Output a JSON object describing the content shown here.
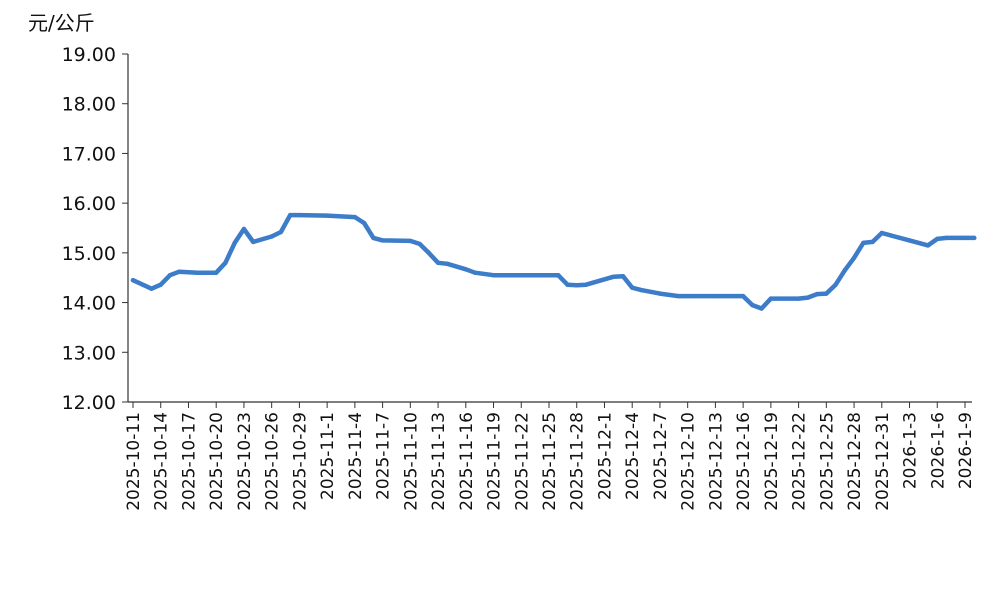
{
  "chart_data": {
    "type": "line",
    "title": "",
    "ylabel": "元/公斤",
    "xlabel": "",
    "ylim": [
      12,
      19
    ],
    "yticks": [
      "12.00",
      "13.00",
      "14.00",
      "15.00",
      "16.00",
      "17.00",
      "18.00",
      "19.00"
    ],
    "xticks": [
      "2025-10-11",
      "2025-10-14",
      "2025-10-17",
      "2025-10-20",
      "2025-10-23",
      "2025-10-26",
      "2025-10-29",
      "2025-11-1",
      "2025-11-4",
      "2025-11-7",
      "2025-11-10",
      "2025-11-13",
      "2025-11-16",
      "2025-11-19",
      "2025-11-22",
      "2025-11-25",
      "2025-11-28",
      "2025-12-1",
      "2025-12-4",
      "2025-12-7",
      "2025-12-10",
      "2025-12-13",
      "2025-12-16",
      "2025-12-19",
      "2025-12-22",
      "2025-12-25",
      "2025-12-28",
      "2025-12-31",
      "2026-1-3",
      "2026-1-6",
      "2026-1-9"
    ],
    "grid": false,
    "legend": "none",
    "series": [
      {
        "color": "#3d7cc9",
        "points": [
          {
            "x": "2025-10-11",
            "y": 14.45
          },
          {
            "x": "2025-10-13",
            "y": 14.28
          },
          {
            "x": "2025-10-14",
            "y": 14.36
          },
          {
            "x": "2025-10-15",
            "y": 14.55
          },
          {
            "x": "2025-10-16",
            "y": 14.62
          },
          {
            "x": "2025-10-17",
            "y": 14.61
          },
          {
            "x": "2025-10-18",
            "y": 14.6
          },
          {
            "x": "2025-10-20",
            "y": 14.6
          },
          {
            "x": "2025-10-21",
            "y": 14.8
          },
          {
            "x": "2025-10-22",
            "y": 15.2
          },
          {
            "x": "2025-10-23",
            "y": 15.48
          },
          {
            "x": "2025-10-24",
            "y": 15.22
          },
          {
            "x": "2025-10-26",
            "y": 15.33
          },
          {
            "x": "2025-10-27",
            "y": 15.42
          },
          {
            "x": "2025-10-28",
            "y": 15.76
          },
          {
            "x": "2025-10-29",
            "y": 15.76
          },
          {
            "x": "2025-11-1",
            "y": 15.75
          },
          {
            "x": "2025-11-4",
            "y": 15.72
          },
          {
            "x": "2025-11-5",
            "y": 15.6
          },
          {
            "x": "2025-11-6",
            "y": 15.3
          },
          {
            "x": "2025-11-7",
            "y": 15.25
          },
          {
            "x": "2025-11-10",
            "y": 15.24
          },
          {
            "x": "2025-11-11",
            "y": 15.18
          },
          {
            "x": "2025-11-12",
            "y": 15.0
          },
          {
            "x": "2025-11-13",
            "y": 14.8
          },
          {
            "x": "2025-11-14",
            "y": 14.78
          },
          {
            "x": "2025-11-16",
            "y": 14.67
          },
          {
            "x": "2025-11-17",
            "y": 14.6
          },
          {
            "x": "2025-11-19",
            "y": 14.55
          },
          {
            "x": "2025-11-22",
            "y": 14.55
          },
          {
            "x": "2025-11-25",
            "y": 14.55
          },
          {
            "x": "2025-11-26",
            "y": 14.55
          },
          {
            "x": "2025-11-27",
            "y": 14.36
          },
          {
            "x": "2025-11-28",
            "y": 14.35
          },
          {
            "x": "2025-11-29",
            "y": 14.36
          },
          {
            "x": "2025-12-2",
            "y": 14.52
          },
          {
            "x": "2025-12-3",
            "y": 14.53
          },
          {
            "x": "2025-12-4",
            "y": 14.3
          },
          {
            "x": "2025-12-5",
            "y": 14.25
          },
          {
            "x": "2025-12-7",
            "y": 14.18
          },
          {
            "x": "2025-12-9",
            "y": 14.13
          },
          {
            "x": "2025-12-10",
            "y": 14.13
          },
          {
            "x": "2025-12-13",
            "y": 14.13
          },
          {
            "x": "2025-12-16",
            "y": 14.13
          },
          {
            "x": "2025-12-17",
            "y": 13.95
          },
          {
            "x": "2025-12-18",
            "y": 13.88
          },
          {
            "x": "2025-12-19",
            "y": 14.08
          },
          {
            "x": "2025-12-22",
            "y": 14.08
          },
          {
            "x": "2025-12-23",
            "y": 14.1
          },
          {
            "x": "2025-12-24",
            "y": 14.17
          },
          {
            "x": "2025-12-25",
            "y": 14.18
          },
          {
            "x": "2025-12-26",
            "y": 14.36
          },
          {
            "x": "2025-12-27",
            "y": 14.65
          },
          {
            "x": "2025-12-28",
            "y": 14.9
          },
          {
            "x": "2025-12-29",
            "y": 15.2
          },
          {
            "x": "2025-12-30",
            "y": 15.22
          },
          {
            "x": "2025-12-31",
            "y": 15.4
          },
          {
            "x": "2026-1-1",
            "y": 15.35
          },
          {
            "x": "2026-1-3",
            "y": 15.25
          },
          {
            "x": "2026-1-5",
            "y": 15.15
          },
          {
            "x": "2026-1-6",
            "y": 15.28
          },
          {
            "x": "2026-1-7",
            "y": 15.3
          },
          {
            "x": "2026-1-9",
            "y": 15.3
          },
          {
            "x": "2026-1-10",
            "y": 15.3
          }
        ]
      }
    ]
  }
}
